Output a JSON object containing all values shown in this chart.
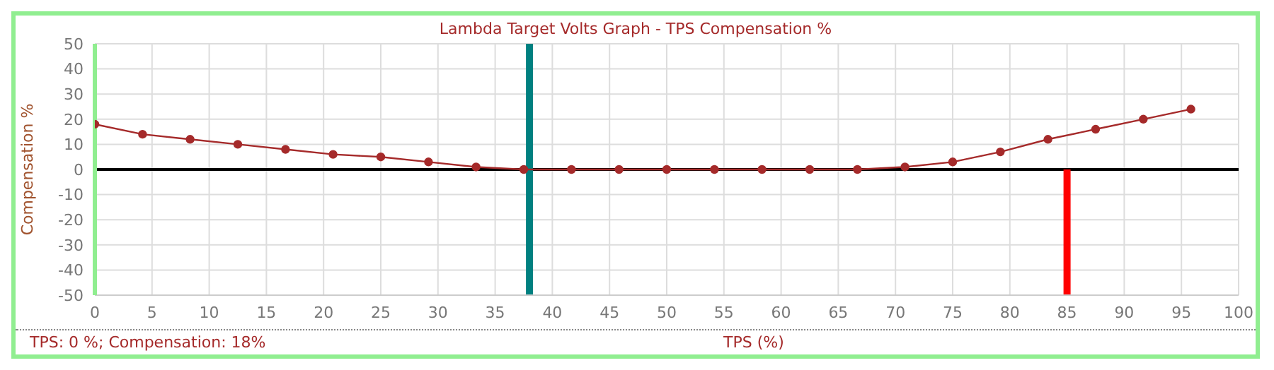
{
  "chart_data": {
    "type": "line",
    "title": "Lambda Target Volts Graph - TPS Compensation %",
    "xlabel": "TPS (%)",
    "ylabel": "Compensation %",
    "annotations": [
      "TPS: 0 %; Compensation: 18%"
    ],
    "x": [
      0,
      4.17,
      8.33,
      12.5,
      16.67,
      20.83,
      25,
      29.17,
      33.33,
      37.5,
      41.67,
      45.83,
      50,
      54.17,
      58.33,
      62.5,
      66.67,
      70.83,
      75,
      79.17,
      83.33,
      87.5,
      91.67,
      95.83
    ],
    "series": [
      {
        "color": "#a52a2a",
        "values": [
          18,
          14,
          12,
          10,
          8,
          6,
          5,
          3,
          1,
          0,
          0,
          0,
          0,
          0,
          0,
          0,
          0,
          1,
          3,
          7,
          12,
          16,
          20,
          24
        ]
      }
    ],
    "xlim": [
      0,
      100
    ],
    "xticks": [
      0,
      5,
      10,
      15,
      20,
      25,
      30,
      35,
      40,
      45,
      50,
      55,
      60,
      65,
      70,
      75,
      80,
      85,
      90,
      95,
      100
    ],
    "ylim": [
      -50,
      50
    ],
    "yticks": [
      -50,
      -40,
      -30,
      -20,
      -10,
      0,
      10,
      20,
      30,
      40,
      50
    ],
    "ref_lines": [
      {
        "axis": "y",
        "value": 0,
        "color": "#000000"
      },
      {
        "axis": "x",
        "value": 38,
        "color": "#008080"
      },
      {
        "axis": "x",
        "value": 85,
        "color": "#ff0000"
      }
    ],
    "grid": true,
    "marker": "circle",
    "line_style": "solid",
    "legend": false
  }
}
